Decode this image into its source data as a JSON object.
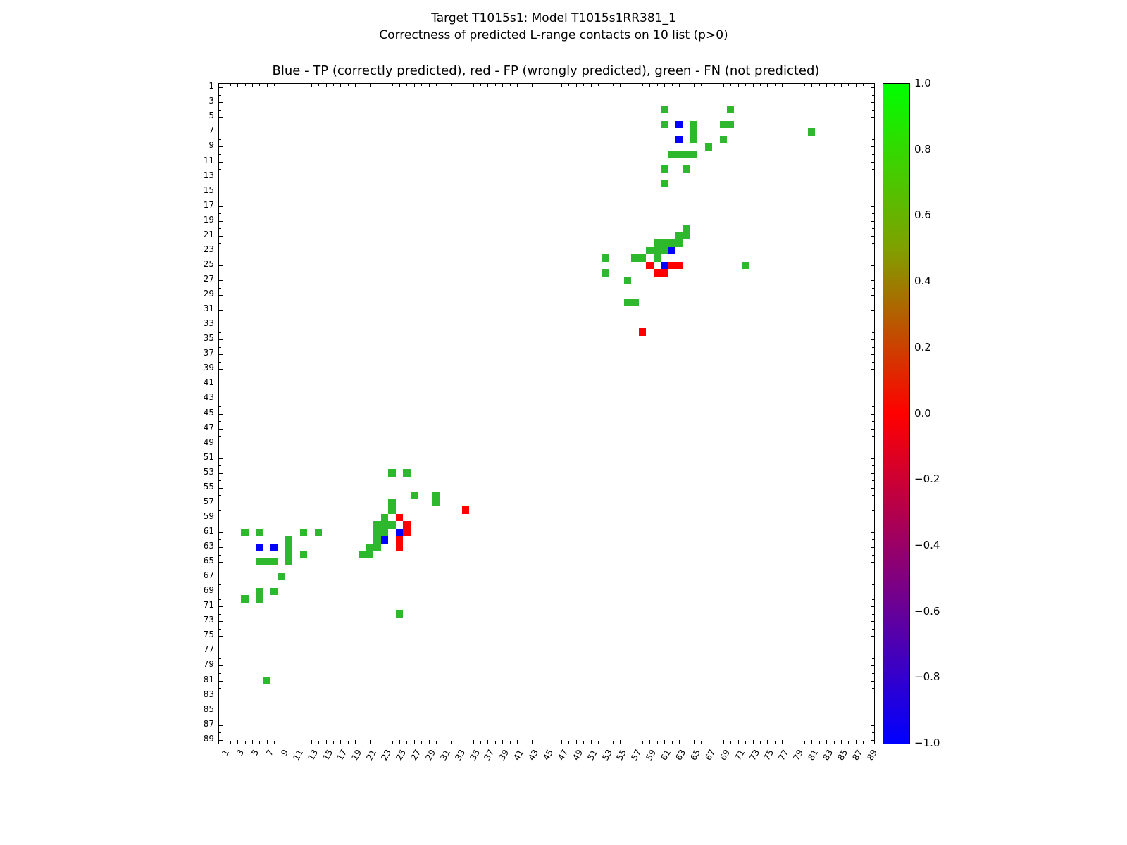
{
  "figure": {
    "suptitle_line1": "Target T1015s1: Model T1015s1RR381_1",
    "suptitle_line2": "Correctness of predicted L-range contacts on 10 list (p>0)",
    "axes_title": "Blue - TP (correctly predicted), red - FP (wrongly predicted), green - FN (not predicted)",
    "background": "#ffffff"
  },
  "chart_data": {
    "type": "heatmap",
    "title": "Blue - TP (correctly predicted), red - FP (wrongly predicted), green - FN (not predicted)",
    "xlabel": "",
    "ylabel": "",
    "x_axis": {
      "min": 1,
      "max": 89,
      "tick_values": [
        1,
        3,
        5,
        7,
        9,
        11,
        13,
        15,
        17,
        19,
        21,
        23,
        25,
        27,
        29,
        31,
        33,
        35,
        37,
        39,
        41,
        43,
        45,
        47,
        49,
        51,
        53,
        55,
        57,
        59,
        61,
        63,
        65,
        67,
        69,
        71,
        73,
        75,
        77,
        79,
        81,
        83,
        85,
        87,
        89
      ]
    },
    "y_axis": {
      "min": 1,
      "max": 89,
      "inverted": true,
      "tick_values": [
        1,
        3,
        5,
        7,
        9,
        11,
        13,
        15,
        17,
        19,
        21,
        23,
        25,
        27,
        29,
        31,
        33,
        35,
        37,
        39,
        41,
        43,
        45,
        47,
        49,
        51,
        53,
        55,
        57,
        59,
        61,
        63,
        65,
        67,
        69,
        71,
        73,
        75,
        77,
        79,
        81,
        83,
        85,
        87,
        89
      ]
    },
    "classes": {
      "TP": {
        "label": "correctly predicted",
        "color": "#0000ff"
      },
      "FP": {
        "label": "wrongly predicted",
        "color": "#ff0000"
      },
      "FN": {
        "label": "not predicted",
        "color": "#2eb82e"
      }
    },
    "cells": [
      {
        "x": 61,
        "y": 4,
        "t": "FN"
      },
      {
        "x": 70,
        "y": 4,
        "t": "FN"
      },
      {
        "x": 61,
        "y": 6,
        "t": "FN"
      },
      {
        "x": 63,
        "y": 6,
        "t": "TP"
      },
      {
        "x": 65,
        "y": 6,
        "t": "FN"
      },
      {
        "x": 69,
        "y": 6,
        "t": "FN"
      },
      {
        "x": 70,
        "y": 6,
        "t": "FN"
      },
      {
        "x": 65,
        "y": 7,
        "t": "FN"
      },
      {
        "x": 81,
        "y": 7,
        "t": "FN"
      },
      {
        "x": 63,
        "y": 8,
        "t": "TP"
      },
      {
        "x": 65,
        "y": 8,
        "t": "FN"
      },
      {
        "x": 69,
        "y": 8,
        "t": "FN"
      },
      {
        "x": 67,
        "y": 9,
        "t": "FN"
      },
      {
        "x": 62,
        "y": 10,
        "t": "FN"
      },
      {
        "x": 63,
        "y": 10,
        "t": "FN"
      },
      {
        "x": 64,
        "y": 10,
        "t": "FN"
      },
      {
        "x": 65,
        "y": 10,
        "t": "FN"
      },
      {
        "x": 61,
        "y": 12,
        "t": "FN"
      },
      {
        "x": 64,
        "y": 12,
        "t": "FN"
      },
      {
        "x": 61,
        "y": 14,
        "t": "FN"
      },
      {
        "x": 64,
        "y": 20,
        "t": "FN"
      },
      {
        "x": 63,
        "y": 21,
        "t": "FN"
      },
      {
        "x": 64,
        "y": 21,
        "t": "FN"
      },
      {
        "x": 60,
        "y": 22,
        "t": "FN"
      },
      {
        "x": 61,
        "y": 22,
        "t": "FN"
      },
      {
        "x": 62,
        "y": 22,
        "t": "FN"
      },
      {
        "x": 63,
        "y": 22,
        "t": "FN"
      },
      {
        "x": 59,
        "y": 23,
        "t": "FN"
      },
      {
        "x": 60,
        "y": 23,
        "t": "FN"
      },
      {
        "x": 61,
        "y": 23,
        "t": "FN"
      },
      {
        "x": 62,
        "y": 23,
        "t": "TP"
      },
      {
        "x": 53,
        "y": 24,
        "t": "FN"
      },
      {
        "x": 57,
        "y": 24,
        "t": "FN"
      },
      {
        "x": 58,
        "y": 24,
        "t": "FN"
      },
      {
        "x": 60,
        "y": 24,
        "t": "FN"
      },
      {
        "x": 59,
        "y": 25,
        "t": "FP"
      },
      {
        "x": 61,
        "y": 25,
        "t": "TP"
      },
      {
        "x": 62,
        "y": 25,
        "t": "FP"
      },
      {
        "x": 63,
        "y": 25,
        "t": "FP"
      },
      {
        "x": 72,
        "y": 25,
        "t": "FN"
      },
      {
        "x": 53,
        "y": 26,
        "t": "FN"
      },
      {
        "x": 60,
        "y": 26,
        "t": "FP"
      },
      {
        "x": 61,
        "y": 26,
        "t": "FP"
      },
      {
        "x": 56,
        "y": 27,
        "t": "FN"
      },
      {
        "x": 56,
        "y": 30,
        "t": "FN"
      },
      {
        "x": 57,
        "y": 30,
        "t": "FN"
      },
      {
        "x": 58,
        "y": 34,
        "t": "FP"
      },
      {
        "x": 24,
        "y": 53,
        "t": "FN"
      },
      {
        "x": 26,
        "y": 53,
        "t": "FN"
      },
      {
        "x": 27,
        "y": 56,
        "t": "FN"
      },
      {
        "x": 30,
        "y": 56,
        "t": "FN"
      },
      {
        "x": 24,
        "y": 57,
        "t": "FN"
      },
      {
        "x": 30,
        "y": 57,
        "t": "FN"
      },
      {
        "x": 24,
        "y": 58,
        "t": "FN"
      },
      {
        "x": 34,
        "y": 58,
        "t": "FP"
      },
      {
        "x": 23,
        "y": 59,
        "t": "FN"
      },
      {
        "x": 25,
        "y": 59,
        "t": "FP"
      },
      {
        "x": 22,
        "y": 60,
        "t": "FN"
      },
      {
        "x": 23,
        "y": 60,
        "t": "FN"
      },
      {
        "x": 24,
        "y": 60,
        "t": "FN"
      },
      {
        "x": 26,
        "y": 60,
        "t": "FP"
      },
      {
        "x": 4,
        "y": 61,
        "t": "FN"
      },
      {
        "x": 6,
        "y": 61,
        "t": "FN"
      },
      {
        "x": 12,
        "y": 61,
        "t": "FN"
      },
      {
        "x": 14,
        "y": 61,
        "t": "FN"
      },
      {
        "x": 22,
        "y": 61,
        "t": "FN"
      },
      {
        "x": 23,
        "y": 61,
        "t": "FN"
      },
      {
        "x": 25,
        "y": 61,
        "t": "TP"
      },
      {
        "x": 26,
        "y": 61,
        "t": "FP"
      },
      {
        "x": 10,
        "y": 62,
        "t": "FN"
      },
      {
        "x": 22,
        "y": 62,
        "t": "FN"
      },
      {
        "x": 23,
        "y": 62,
        "t": "TP"
      },
      {
        "x": 25,
        "y": 62,
        "t": "FP"
      },
      {
        "x": 6,
        "y": 63,
        "t": "TP"
      },
      {
        "x": 8,
        "y": 63,
        "t": "TP"
      },
      {
        "x": 10,
        "y": 63,
        "t": "FN"
      },
      {
        "x": 21,
        "y": 63,
        "t": "FN"
      },
      {
        "x": 22,
        "y": 63,
        "t": "FN"
      },
      {
        "x": 25,
        "y": 63,
        "t": "FP"
      },
      {
        "x": 10,
        "y": 64,
        "t": "FN"
      },
      {
        "x": 12,
        "y": 64,
        "t": "FN"
      },
      {
        "x": 20,
        "y": 64,
        "t": "FN"
      },
      {
        "x": 21,
        "y": 64,
        "t": "FN"
      },
      {
        "x": 6,
        "y": 65,
        "t": "FN"
      },
      {
        "x": 7,
        "y": 65,
        "t": "FN"
      },
      {
        "x": 8,
        "y": 65,
        "t": "FN"
      },
      {
        "x": 10,
        "y": 65,
        "t": "FN"
      },
      {
        "x": 9,
        "y": 67,
        "t": "FN"
      },
      {
        "x": 6,
        "y": 69,
        "t": "FN"
      },
      {
        "x": 8,
        "y": 69,
        "t": "FN"
      },
      {
        "x": 4,
        "y": 70,
        "t": "FN"
      },
      {
        "x": 6,
        "y": 70,
        "t": "FN"
      },
      {
        "x": 25,
        "y": 72,
        "t": "FN"
      },
      {
        "x": 7,
        "y": 81,
        "t": "FN"
      }
    ],
    "colorbar": {
      "min": -1.0,
      "max": 1.0,
      "gradient_stops": [
        {
          "pos": 0,
          "color": "#00ff00"
        },
        {
          "pos": 25,
          "color": "#80a000"
        },
        {
          "pos": 50,
          "color": "#ff0000"
        },
        {
          "pos": 75,
          "color": "#800080"
        },
        {
          "pos": 100,
          "color": "#0000ff"
        }
      ],
      "tick_labels": [
        {
          "label": "1.0",
          "value": 1.0
        },
        {
          "label": "0.8",
          "value": 0.8
        },
        {
          "label": "0.6",
          "value": 0.6
        },
        {
          "label": "0.4",
          "value": 0.4
        },
        {
          "label": "0.2",
          "value": 0.2
        },
        {
          "label": "0.0",
          "value": 0.0
        },
        {
          "label": "−0.2",
          "value": -0.2
        },
        {
          "label": "−0.4",
          "value": -0.4
        },
        {
          "label": "−0.6",
          "value": -0.6
        },
        {
          "label": "−0.8",
          "value": -0.8
        },
        {
          "label": "−1.0",
          "value": -1.0
        }
      ]
    }
  }
}
